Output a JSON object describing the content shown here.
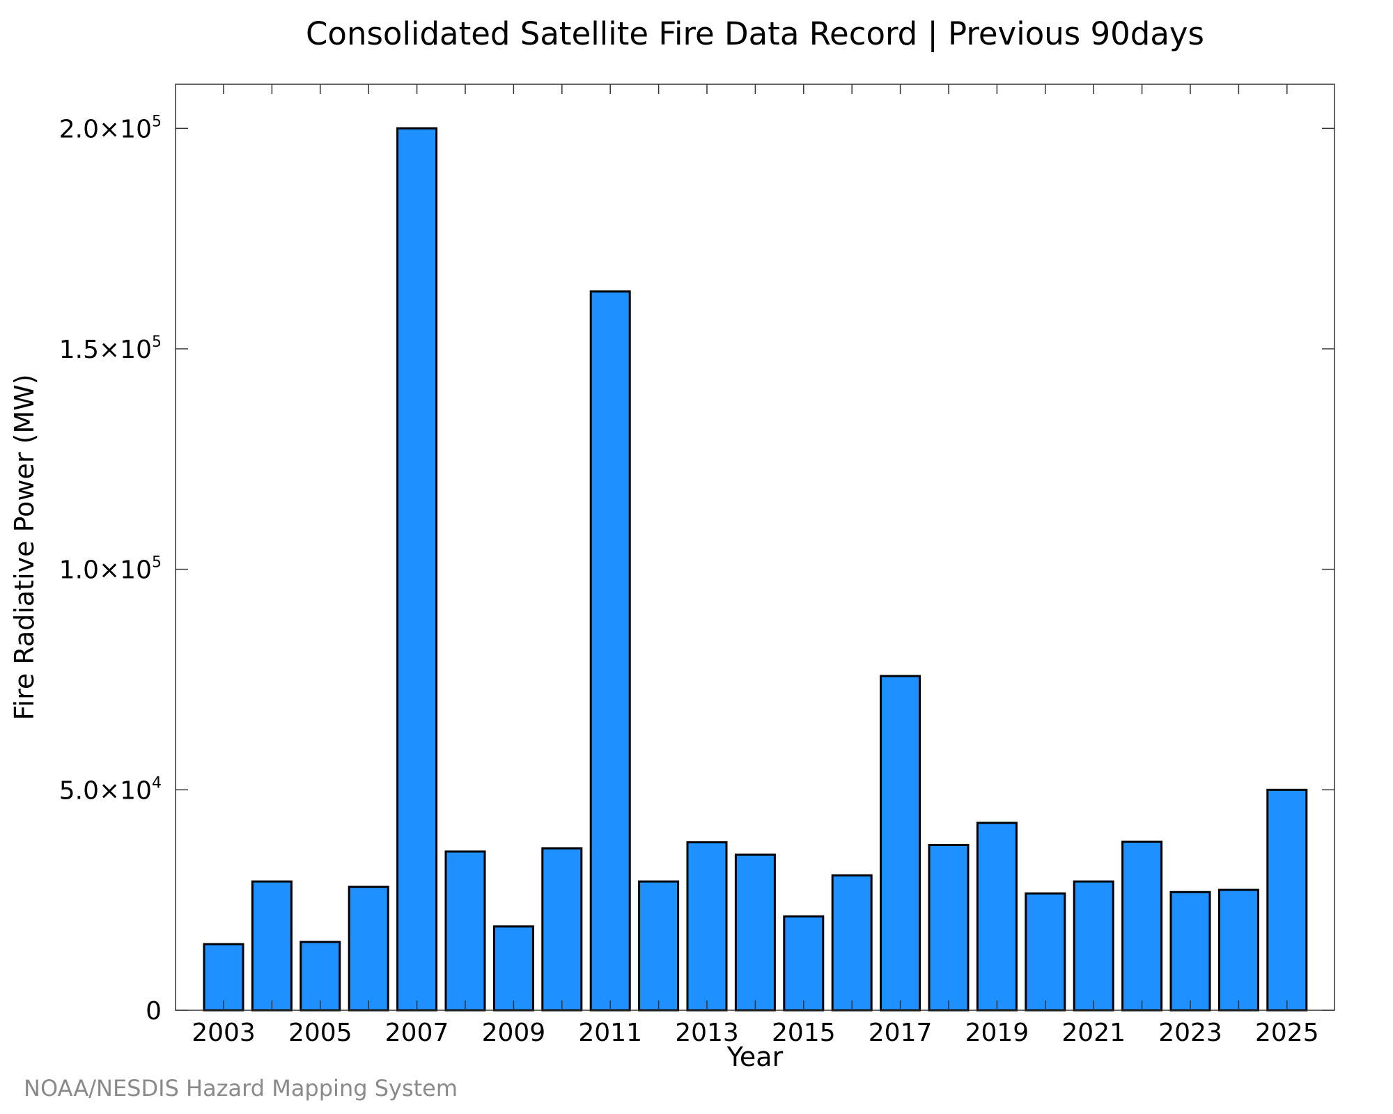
{
  "chart_data": {
    "type": "bar",
    "title": "Consolidated Satellite Fire Data Record | Previous 90days",
    "xlabel": "Year",
    "ylabel": "Fire Radiative Power (MW)",
    "categories": [
      "2003",
      "2004",
      "2005",
      "2006",
      "2007",
      "2008",
      "2009",
      "2010",
      "2011",
      "2012",
      "2013",
      "2014",
      "2015",
      "2016",
      "2017",
      "2018",
      "2019",
      "2020",
      "2021",
      "2022",
      "2023",
      "2024",
      "2025"
    ],
    "values": [
      15000,
      29200,
      15500,
      28000,
      200000,
      36000,
      19000,
      36700,
      163000,
      29200,
      38100,
      35300,
      21300,
      30600,
      75800,
      37500,
      42500,
      26500,
      29200,
      38200,
      26800,
      27300,
      50000
    ],
    "x_tick_labels": [
      "2003",
      "2005",
      "2007",
      "2009",
      "2011",
      "2013",
      "2015",
      "2017",
      "2019",
      "2021",
      "2023",
      "2025"
    ],
    "y_ticks": [
      {
        "value": 0,
        "mantissa": "0",
        "exp": ""
      },
      {
        "value": 50000,
        "mantissa": "5.0×10",
        "exp": "4"
      },
      {
        "value": 100000,
        "mantissa": "1.0×10",
        "exp": "5"
      },
      {
        "value": 150000,
        "mantissa": "1.5×10",
        "exp": "5"
      },
      {
        "value": 200000,
        "mantissa": "2.0×10",
        "exp": "5"
      }
    ],
    "ylim": [
      0,
      210000
    ],
    "bar_color": "#1e90ff",
    "grid": false,
    "legend": "none"
  },
  "credit": "NOAA/NESDIS Hazard Mapping System"
}
